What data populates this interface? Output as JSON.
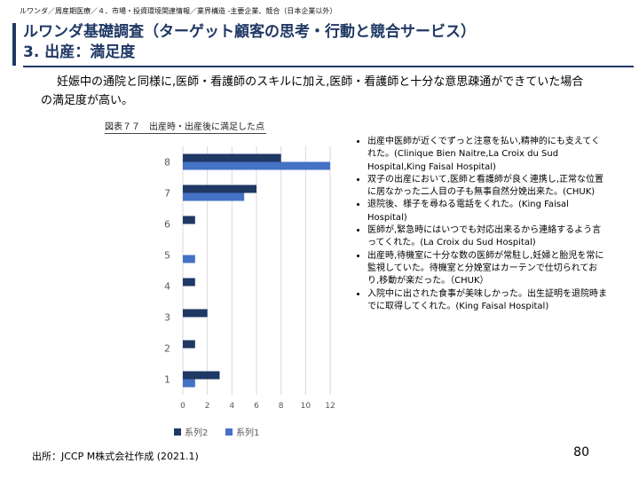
{
  "breadcrumb": "ルワンダ／周産期医療／４．市場・投資環境関連情報／業界構造 -主要企業、競合（日本企業以外）",
  "title": {
    "line1": "ルワンダ基礎調査（ターゲット顧客の思考・行動と競合サービス）",
    "line2": "3. 出産：満足度"
  },
  "body_text": "妊娠中の通院と同様に,医師・看護師のスキルに加え,医師・看護師と十分な意思疎通ができていた場合の満足度が高い。",
  "figure_caption": "図表７７　出産時・出産後に満足した点",
  "bullets": [
    "出産中医師が近くでずっと注意を払い,精神的にも支えてくれた。(Clinique Bien Naitre,La Croix du Sud Hospital,King Faisal Hospital)",
    "双子の出産において,医師と看護師が良く連携し,正常な位置に居なかった二人目の子も無事自然分娩出来た。(CHUK)",
    "退院後、様子を尋ねる電話をくれた。(King Faisal Hospital)",
    "医師が,緊急時にはいつでも対応出来るから連絡するよう言ってくれた。(La Croix du Sud Hospital)",
    "出産時,待機室に十分な数の医師が常駐し,妊婦と胎児を常に監視していた。待機室と分娩室はカーテンで仕切られており,移動が楽だった。（CHUK）",
    "入院中に出された食事が美味しかった。出生証明を退院時までに取得してくれた。(King Faisal Hospital)"
  ],
  "source": "出所：JCCP M株式会社作成 (2021.1)",
  "page_number": "80",
  "colors": {
    "title": "#1f3864",
    "series2": "#1f3864",
    "series1": "#4472c4",
    "gridline": "#d9d9d9"
  },
  "chart_data": {
    "type": "bar",
    "orientation": "horizontal",
    "categories": [
      "1",
      "2",
      "3",
      "4",
      "5",
      "6",
      "7",
      "8"
    ],
    "series": [
      {
        "name": "系列2",
        "values": [
          3,
          1,
          2,
          1,
          0,
          1,
          6,
          8
        ]
      },
      {
        "name": "系列1",
        "values": [
          1,
          0,
          0,
          0,
          1,
          0,
          5,
          12
        ]
      }
    ],
    "xlim": [
      0,
      12
    ],
    "xticks": [
      0,
      2,
      4,
      6,
      8,
      10,
      12
    ],
    "grid": true,
    "legend": "bottom"
  }
}
